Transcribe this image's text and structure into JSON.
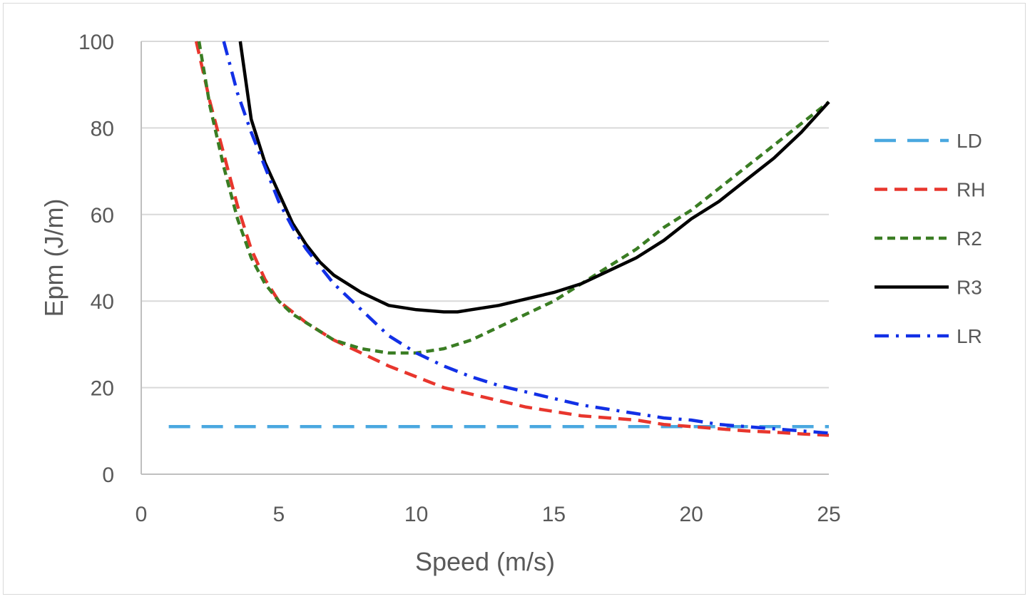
{
  "chart_data": {
    "type": "line",
    "xlabel": "Speed (m/s)",
    "ylabel": "Epm (J/m)",
    "xlim": [
      0,
      25
    ],
    "ylim": [
      0,
      100
    ],
    "x_ticks": [
      0,
      5,
      10,
      15,
      20,
      25
    ],
    "y_ticks": [
      0,
      20,
      40,
      60,
      80,
      100
    ],
    "x_tick_labels": [
      "0",
      "5",
      "10",
      "15",
      "20",
      "25"
    ],
    "y_tick_labels": [
      "0",
      "20",
      "40",
      "60",
      "80",
      "100"
    ],
    "grid": "horizontal",
    "legend_position": "right",
    "series": [
      {
        "name": "LD",
        "color": "#4aa8e0",
        "dash": "long-dash",
        "x": [
          1,
          25
        ],
        "y": [
          11,
          11
        ]
      },
      {
        "name": "RH",
        "color": "#e8362d",
        "dash": "dash",
        "x": [
          2,
          2.5,
          3,
          3.5,
          4,
          4.5,
          5,
          6,
          7,
          8,
          9,
          10,
          11,
          12,
          13,
          14,
          15,
          16,
          17,
          18,
          19,
          20,
          21,
          22,
          23,
          24,
          25
        ],
        "y": [
          100,
          86,
          74,
          62,
          52,
          45,
          40,
          35,
          31,
          28,
          25,
          22.5,
          20,
          18.5,
          17,
          15.5,
          14.5,
          13.5,
          13,
          12.5,
          11.5,
          11,
          10.5,
          10,
          9.7,
          9.3,
          9
        ]
      },
      {
        "name": "R2",
        "color": "#3a7d23",
        "dash": "short-dash",
        "x": [
          2.1,
          2.5,
          3,
          3.5,
          4,
          4.5,
          5,
          5.5,
          6,
          7,
          8,
          9,
          10,
          11,
          12,
          13,
          14,
          15,
          16,
          17,
          18,
          19,
          20,
          21,
          22,
          23,
          24,
          25
        ],
        "y": [
          100,
          85,
          71,
          59,
          50,
          44,
          40,
          37,
          35,
          31,
          29,
          28,
          28,
          29,
          31,
          34,
          37,
          40,
          44,
          48,
          52,
          57,
          61,
          66,
          71,
          76,
          81,
          86
        ]
      },
      {
        "name": "R3",
        "color": "#000000",
        "dash": "solid",
        "x": [
          3.6,
          4,
          4.5,
          5,
          5.5,
          6,
          6.5,
          7,
          8,
          9,
          10,
          11,
          11.5,
          12,
          13,
          14,
          15,
          16,
          17,
          18,
          19,
          20,
          21,
          22,
          23,
          24,
          25
        ],
        "y": [
          100,
          82,
          72,
          65,
          58,
          53,
          49,
          46,
          42,
          39,
          38,
          37.5,
          37.5,
          38,
          39,
          40.5,
          42,
          44,
          47,
          50,
          54,
          59,
          63,
          68,
          73,
          79,
          86
        ]
      },
      {
        "name": "LR",
        "color": "#1230e6",
        "dash": "dash-dot",
        "x": [
          3,
          3.5,
          4,
          4.5,
          5,
          5.5,
          6,
          7,
          8,
          9,
          10,
          11,
          12,
          13,
          14,
          15,
          16,
          17,
          18,
          19,
          20,
          21,
          22,
          23,
          24,
          25
        ],
        "y": [
          100,
          88,
          79,
          71,
          63,
          57,
          52,
          44,
          38,
          32,
          28,
          25,
          22.5,
          20.5,
          19,
          17.5,
          16,
          15,
          14,
          13,
          12.5,
          11.5,
          11,
          10.5,
          10,
          9.5
        ]
      }
    ]
  }
}
